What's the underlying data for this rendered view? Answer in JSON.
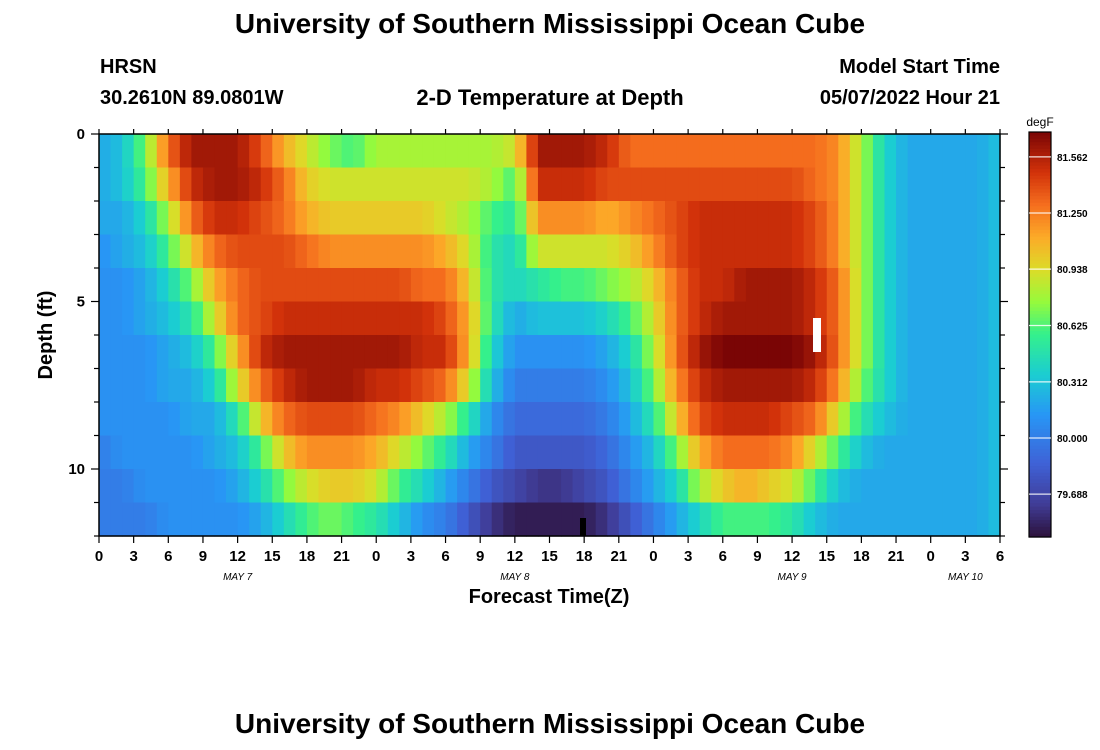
{
  "header": {
    "title": "University of Southern Mississippi Ocean Cube",
    "station": "HRSN",
    "coords": "30.2610N  89.0801W",
    "subtitle": "2-D Temperature at Depth",
    "model_start_label": "Model Start Time",
    "model_start_value": "05/07/2022 Hour 21"
  },
  "footer": {
    "title": "University of Southern Mississippi Ocean Cube"
  },
  "chart_data": {
    "type": "heatmap",
    "title": "2-D Temperature at Depth",
    "xlabel": "Forecast Time(Z)",
    "ylabel": "Depth (ft)",
    "x_range_hours": [
      0,
      78
    ],
    "y_range_ft": [
      0,
      12
    ],
    "x_tick_labels": [
      "0",
      "3",
      "6",
      "9",
      "12",
      "15",
      "18",
      "21",
      "0",
      "3",
      "6",
      "9",
      "12",
      "15",
      "18",
      "21",
      "0",
      "3",
      "6",
      "9",
      "12",
      "15",
      "18",
      "21",
      "0",
      "3",
      "6"
    ],
    "x_tick_hours": [
      0,
      3,
      6,
      9,
      12,
      15,
      18,
      21,
      24,
      27,
      30,
      33,
      36,
      39,
      42,
      45,
      48,
      51,
      54,
      57,
      60,
      63,
      66,
      69,
      72,
      75,
      78
    ],
    "date_labels": [
      {
        "text": "MAY 7",
        "hour": 12
      },
      {
        "text": "MAY 8",
        "hour": 36
      },
      {
        "text": "MAY 9",
        "hour": 60
      },
      {
        "text": "MAY 10",
        "hour": 75
      }
    ],
    "y_ticks": [
      0,
      5,
      10
    ],
    "y_tick_labels": [
      "0",
      "5",
      "10"
    ],
    "colorbar": {
      "unit": "degF",
      "min": 79.45,
      "max": 81.7,
      "tick_values": [
        81.562,
        81.25,
        80.938,
        80.625,
        80.312,
        80.0,
        79.688
      ],
      "tick_labels": [
        "81.562",
        "81.250",
        "80.938",
        "80.625",
        "80.312",
        "80.000",
        "79.688"
      ]
    },
    "depth_layers_ft": [
      0.5,
      1.5,
      2.5,
      3.5,
      4.5,
      5.5,
      6.5,
      7.5,
      8.5,
      9.5,
      10.5,
      11.5
    ],
    "temperature_keyframes": {
      "hours": [
        0,
        2,
        4,
        6,
        8,
        10,
        12,
        14,
        16,
        18,
        20,
        22,
        24,
        26,
        28,
        30,
        32,
        34,
        36,
        38,
        40,
        42,
        44,
        46,
        48,
        50,
        52,
        54,
        56,
        58,
        60,
        62,
        64,
        66,
        68,
        70,
        72,
        74,
        76,
        78
      ],
      "rows": [
        [
          80.2,
          80.3,
          80.7,
          81.3,
          81.6,
          81.6,
          81.6,
          81.4,
          81.1,
          80.9,
          80.7,
          80.6,
          80.8,
          80.8,
          80.8,
          80.8,
          80.8,
          80.8,
          80.9,
          81.6,
          81.6,
          81.6,
          81.5,
          81.3,
          81.3,
          81.3,
          81.3,
          81.3,
          81.3,
          81.3,
          81.3,
          81.3,
          81.2,
          80.8,
          80.4,
          80.2,
          80.2,
          80.2,
          80.2,
          80.3
        ],
        [
          80.2,
          80.3,
          80.6,
          81.1,
          81.5,
          81.6,
          81.6,
          81.5,
          81.3,
          81.0,
          80.9,
          80.9,
          80.9,
          80.9,
          80.9,
          80.9,
          80.9,
          80.8,
          80.6,
          81.5,
          81.5,
          81.5,
          81.4,
          81.4,
          81.4,
          81.4,
          81.4,
          81.4,
          81.4,
          81.4,
          81.4,
          81.3,
          81.2,
          80.8,
          80.4,
          80.2,
          80.2,
          80.2,
          80.2,
          80.3
        ],
        [
          80.2,
          80.2,
          80.4,
          80.8,
          81.3,
          81.5,
          81.5,
          81.4,
          81.3,
          81.1,
          81.0,
          81.0,
          81.0,
          81.0,
          81.0,
          80.9,
          80.8,
          80.6,
          80.5,
          81.2,
          81.2,
          81.2,
          81.1,
          81.2,
          81.3,
          81.4,
          81.5,
          81.5,
          81.5,
          81.5,
          81.5,
          81.4,
          81.2,
          80.8,
          80.4,
          80.2,
          80.2,
          80.2,
          80.2,
          80.3
        ],
        [
          80.1,
          80.2,
          80.3,
          80.6,
          81.0,
          81.3,
          81.4,
          81.4,
          81.4,
          81.3,
          81.2,
          81.2,
          81.2,
          81.2,
          81.2,
          81.1,
          80.9,
          80.5,
          80.4,
          80.9,
          80.9,
          80.9,
          80.9,
          81.0,
          81.2,
          81.4,
          81.5,
          81.5,
          81.5,
          81.5,
          81.5,
          81.4,
          81.2,
          80.8,
          80.4,
          80.2,
          80.2,
          80.2,
          80.2,
          80.3
        ],
        [
          80.1,
          80.1,
          80.2,
          80.4,
          80.7,
          81.1,
          81.3,
          81.4,
          81.4,
          81.4,
          81.4,
          81.4,
          81.4,
          81.4,
          81.3,
          81.3,
          81.0,
          80.5,
          80.4,
          80.5,
          80.6,
          80.6,
          80.7,
          80.8,
          81.0,
          81.3,
          81.5,
          81.5,
          81.6,
          81.6,
          81.6,
          81.5,
          81.3,
          80.8,
          80.4,
          80.2,
          80.2,
          80.2,
          80.2,
          80.3
        ],
        [
          80.1,
          80.1,
          80.2,
          80.3,
          80.5,
          80.9,
          81.3,
          81.4,
          81.5,
          81.5,
          81.5,
          81.5,
          81.5,
          81.5,
          81.5,
          81.4,
          81.1,
          80.5,
          80.2,
          80.3,
          80.3,
          80.3,
          80.4,
          80.6,
          80.9,
          81.3,
          81.5,
          81.6,
          81.6,
          81.6,
          81.6,
          81.5,
          81.3,
          80.8,
          80.4,
          80.2,
          80.2,
          80.2,
          80.2,
          80.3
        ],
        [
          80.1,
          80.1,
          80.1,
          80.2,
          80.3,
          80.6,
          81.1,
          81.5,
          81.6,
          81.6,
          81.6,
          81.6,
          81.6,
          81.6,
          81.5,
          81.5,
          81.1,
          80.4,
          80.1,
          80.1,
          80.1,
          80.1,
          80.2,
          80.4,
          80.8,
          81.3,
          81.6,
          81.7,
          81.7,
          81.7,
          81.7,
          81.6,
          81.3,
          80.8,
          80.4,
          80.2,
          80.2,
          80.2,
          80.2,
          80.3
        ],
        [
          80.1,
          80.1,
          80.1,
          80.2,
          80.2,
          80.4,
          80.9,
          81.3,
          81.5,
          81.6,
          81.6,
          81.6,
          81.5,
          81.5,
          81.4,
          81.3,
          80.9,
          80.3,
          80.0,
          80.0,
          80.0,
          80.0,
          80.1,
          80.3,
          80.7,
          81.2,
          81.5,
          81.6,
          81.6,
          81.6,
          81.6,
          81.5,
          81.2,
          80.7,
          80.4,
          80.2,
          80.2,
          80.2,
          80.2,
          80.3
        ],
        [
          80.1,
          80.1,
          80.1,
          80.1,
          80.2,
          80.2,
          80.5,
          81.0,
          81.3,
          81.4,
          81.4,
          81.4,
          81.3,
          81.2,
          81.0,
          80.8,
          80.5,
          80.1,
          79.9,
          79.9,
          79.9,
          79.9,
          80.0,
          80.2,
          80.5,
          81.0,
          81.4,
          81.5,
          81.5,
          81.5,
          81.4,
          81.3,
          80.9,
          80.5,
          80.3,
          80.2,
          80.2,
          80.2,
          80.2,
          80.3
        ],
        [
          80.0,
          80.1,
          80.1,
          80.1,
          80.1,
          80.2,
          80.3,
          80.6,
          81.0,
          81.2,
          81.2,
          81.2,
          81.1,
          80.9,
          80.7,
          80.5,
          80.2,
          80.0,
          79.8,
          79.8,
          79.8,
          79.8,
          79.9,
          80.1,
          80.3,
          80.7,
          81.1,
          81.3,
          81.3,
          81.3,
          81.2,
          80.9,
          80.6,
          80.3,
          80.2,
          80.2,
          80.2,
          80.2,
          80.2,
          80.3
        ],
        [
          80.0,
          80.0,
          80.1,
          80.1,
          80.1,
          80.1,
          80.2,
          80.4,
          80.7,
          80.9,
          81.0,
          81.0,
          80.9,
          80.6,
          80.4,
          80.2,
          80.0,
          79.8,
          79.7,
          79.6,
          79.6,
          79.7,
          79.8,
          80.0,
          80.2,
          80.4,
          80.8,
          81.0,
          81.1,
          81.0,
          80.9,
          80.6,
          80.3,
          80.2,
          80.2,
          80.2,
          80.2,
          80.2,
          80.2,
          80.3
        ],
        [
          80.0,
          80.0,
          80.0,
          80.1,
          80.1,
          80.1,
          80.1,
          80.2,
          80.4,
          80.6,
          80.7,
          80.6,
          80.5,
          80.3,
          80.1,
          80.0,
          79.8,
          79.6,
          79.5,
          79.5,
          79.5,
          79.5,
          79.6,
          79.8,
          80.0,
          80.2,
          80.4,
          80.6,
          80.6,
          80.6,
          80.5,
          80.3,
          80.2,
          80.2,
          80.2,
          80.2,
          80.2,
          80.2,
          80.2,
          80.3
        ]
      ]
    }
  }
}
